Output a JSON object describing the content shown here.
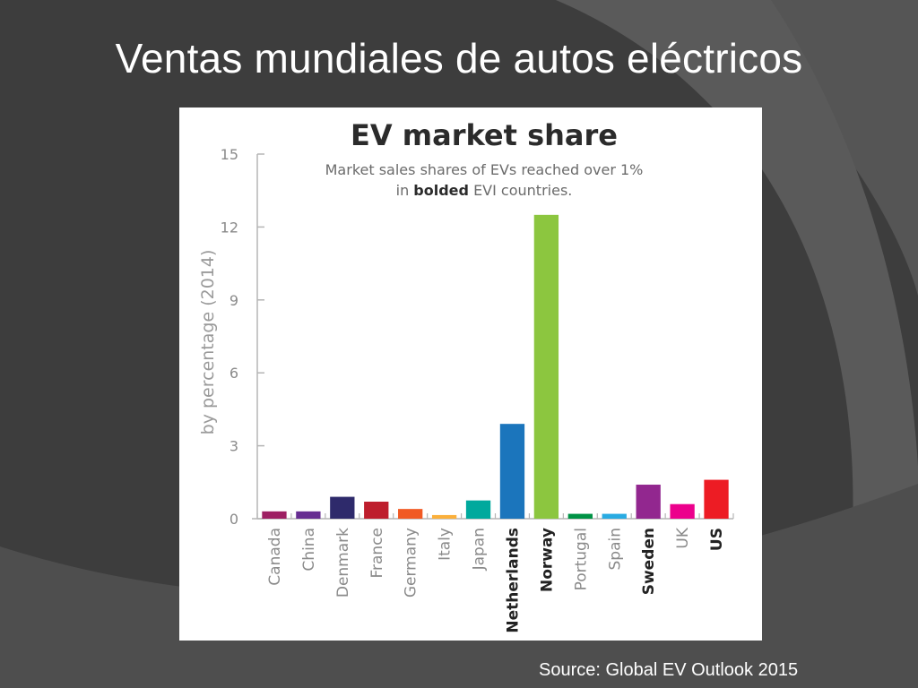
{
  "slide": {
    "title": "Ventas mundiales de autos eléctricos",
    "source": "Source: Global EV Outlook 2015"
  },
  "chart_data": {
    "type": "bar",
    "title": "EV market share",
    "subtitle_line1": "Market sales shares of EVs reached over 1%",
    "subtitle_line2_prefix": "in ",
    "subtitle_line2_bold": "bolded",
    "subtitle_line2_suffix": " EVI countries.",
    "ylabel": "by percentage (2014)",
    "xlabel": "",
    "ylim": [
      0,
      15
    ],
    "yticks": [
      0,
      3,
      6,
      9,
      12,
      15
    ],
    "grid": false,
    "categories": [
      "Canada",
      "China",
      "Denmark",
      "France",
      "Germany",
      "Italy",
      "Japan",
      "Netherlands",
      "Norway",
      "Portugal",
      "Spain",
      "Sweden",
      "UK",
      "US"
    ],
    "values": [
      0.3,
      0.3,
      0.9,
      0.7,
      0.4,
      0.15,
      0.75,
      3.9,
      12.5,
      0.2,
      0.2,
      1.4,
      0.6,
      1.6
    ],
    "bolded": [
      false,
      false,
      false,
      false,
      false,
      false,
      false,
      true,
      true,
      false,
      false,
      true,
      false,
      true
    ],
    "colors": [
      "#9e1f63",
      "#662d91",
      "#2e2a6b",
      "#be1e2d",
      "#f15a24",
      "#fbb03b",
      "#00a99d",
      "#1b75bc",
      "#8cc63f",
      "#009245",
      "#29abe2",
      "#92278f",
      "#ec008c",
      "#ed1c24"
    ]
  }
}
